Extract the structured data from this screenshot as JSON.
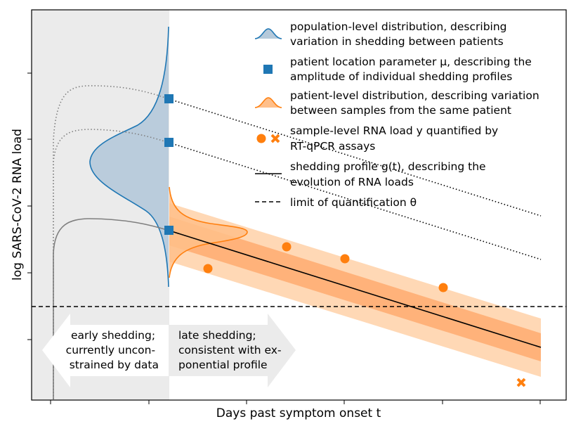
{
  "axes": {
    "xlabel": "Days past symptom onset t",
    "ylabel": "log SARS-CoV-2 RNA load"
  },
  "legend": [
    {
      "icon": "blue-distribution-icon",
      "lines": [
        "population-level distribution, describing",
        "variation in shedding between patients"
      ]
    },
    {
      "icon": "blue-square-icon",
      "lines": [
        "patient location parameter μ, describing the",
        "amplitude of individual shedding profiles"
      ]
    },
    {
      "icon": "orange-distribution-icon",
      "lines": [
        "patient-level distribution, describing variation",
        "between samples from the same patient"
      ]
    },
    {
      "icon": "orange-circle-cross-icon",
      "lines": [
        "sample-level RNA load y quantified by",
        "RT-qPCR assays"
      ]
    },
    {
      "icon": "solid-line-icon",
      "lines": [
        "shedding profile g(t), describing the",
        "evolution of RNA loads"
      ]
    },
    {
      "icon": "dashed-line-icon",
      "lines": [
        "limit of quantification θ"
      ]
    }
  ],
  "arrows": {
    "early": [
      "early shedding;",
      "currently uncon-",
      "strained by data"
    ],
    "late": [
      "late shedding;",
      "consistent with ex-",
      "ponential profile"
    ]
  },
  "colors": {
    "blue": "#1f77b4",
    "orange": "#ff7f0e",
    "shade": "#ebebeb",
    "arrow_fill": "#ebebeb"
  }
}
